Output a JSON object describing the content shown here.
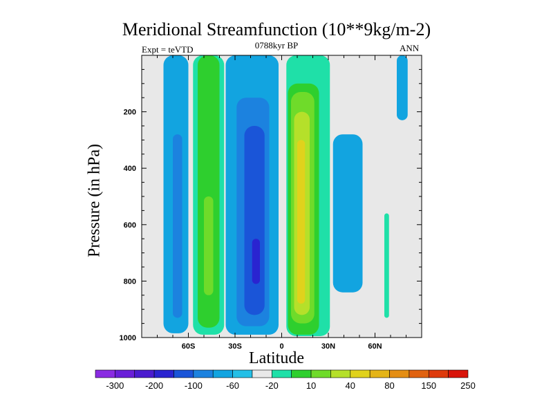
{
  "chart_data": {
    "type": "contour",
    "title": "Meridional Streamfunction (10**9kg/m-2)",
    "subtitle": "0788kyr BP",
    "left_annotation": "Expt = teVTD",
    "right_annotation": "ANN",
    "xlabel": "Latitude",
    "ylabel": "Pressure (in hPa)",
    "x_range": [
      -90,
      90
    ],
    "y_range": [
      0,
      1000
    ],
    "y_inverted": true,
    "x_ticks": [
      {
        "value": -60,
        "label": "60S"
      },
      {
        "value": -30,
        "label": "30S"
      },
      {
        "value": 0,
        "label": "0"
      },
      {
        "value": 30,
        "label": "30N"
      },
      {
        "value": 60,
        "label": "60N"
      }
    ],
    "y_ticks": [
      {
        "value": 200,
        "label": "200"
      },
      {
        "value": 400,
        "label": "400"
      },
      {
        "value": 600,
        "label": "600"
      },
      {
        "value": 800,
        "label": "800"
      },
      {
        "value": 1000,
        "label": "1000"
      }
    ],
    "background_color": "#e8e8e8",
    "colorbar": {
      "labels": [
        "-300",
        "-200",
        "-100",
        "-60",
        "-20",
        "10",
        "40",
        "80",
        "150",
        "250"
      ],
      "colors": [
        "#8a2be2",
        "#6a1fd8",
        "#4b1ccf",
        "#2a24d0",
        "#1a55d8",
        "#1c82df",
        "#12a4e0",
        "#24bfe6",
        "#e8e8e8",
        "#1fe0a8",
        "#2ecf2e",
        "#6fdb2a",
        "#b5e02a",
        "#e0d21c",
        "#e4b418",
        "#e48e14",
        "#e06210",
        "#de3a0c",
        "#d8140a"
      ]
    },
    "regions": [
      {
        "name": "southern-polar-negative-cell",
        "level": "-20",
        "color": "#12a4e0",
        "lat_range": [
          -76,
          -60
        ],
        "pressure_range": [
          0,
          985
        ]
      },
      {
        "name": "southern-polar-negative-core",
        "level": "-60",
        "color": "#1c82df",
        "lat_range": [
          -70,
          -64
        ],
        "pressure_range": [
          280,
          930
        ]
      },
      {
        "name": "southern-ferrel-positive-cell",
        "level": "10",
        "color": "#1fe0a8",
        "lat_range": [
          -57,
          -37
        ],
        "pressure_range": [
          0,
          990
        ]
      },
      {
        "name": "southern-ferrel-positive-mid",
        "level": "40",
        "color": "#2ecf2e",
        "lat_range": [
          -54,
          -40
        ],
        "pressure_range": [
          0,
          965
        ]
      },
      {
        "name": "southern-ferrel-positive-core",
        "level": "80",
        "color": "#6fdb2a",
        "lat_range": [
          -50,
          -44
        ],
        "pressure_range": [
          500,
          850
        ]
      },
      {
        "name": "southern-hadley-negative-cell",
        "level": "-20",
        "color": "#12a4e0",
        "lat_range": [
          -36,
          -2
        ],
        "pressure_range": [
          0,
          990
        ]
      },
      {
        "name": "southern-hadley-negative-mid",
        "level": "-60",
        "color": "#1c82df",
        "lat_range": [
          -29,
          -8
        ],
        "pressure_range": [
          150,
          960
        ]
      },
      {
        "name": "southern-hadley-negative-core",
        "level": "-100",
        "color": "#1a55d8",
        "lat_range": [
          -24,
          -11
        ],
        "pressure_range": [
          250,
          920
        ]
      },
      {
        "name": "southern-hadley-negative-peak",
        "level": "-200",
        "color": "#2a24d0",
        "lat_range": [
          -19,
          -14
        ],
        "pressure_range": [
          650,
          810
        ]
      },
      {
        "name": "northern-hadley-positive-cell",
        "level": "10",
        "color": "#1fe0a8",
        "lat_range": [
          3,
          31
        ],
        "pressure_range": [
          0,
          995
        ]
      },
      {
        "name": "northern-hadley-positive-mid",
        "level": "40",
        "color": "#2ecf2e",
        "lat_range": [
          4,
          24
        ],
        "pressure_range": [
          100,
          990
        ]
      },
      {
        "name": "northern-hadley-positive-inner",
        "level": "80",
        "color": "#6fdb2a",
        "lat_range": [
          6,
          21
        ],
        "pressure_range": [
          130,
          950
        ]
      },
      {
        "name": "northern-hadley-positive-core",
        "level": "150",
        "color": "#b5e02a",
        "lat_range": [
          8,
          18
        ],
        "pressure_range": [
          200,
          920
        ]
      },
      {
        "name": "northern-hadley-positive-peak",
        "level": "250",
        "color": "#e0d21c",
        "lat_range": [
          10,
          15
        ],
        "pressure_range": [
          300,
          880
        ]
      },
      {
        "name": "northern-ferrel-negative-cell",
        "level": "-20",
        "color": "#12a4e0",
        "lat_range": [
          33,
          52
        ],
        "pressure_range": [
          280,
          840
        ]
      },
      {
        "name": "northern-polar-positive-cell",
        "level": "10",
        "color": "#1fe0a8",
        "lat_range": [
          66,
          69
        ],
        "pressure_range": [
          560,
          930
        ]
      },
      {
        "name": "upper-right-negative-wisp",
        "level": "-20",
        "color": "#12a4e0",
        "lat_range": [
          74,
          81
        ],
        "pressure_range": [
          0,
          230
        ]
      }
    ]
  }
}
